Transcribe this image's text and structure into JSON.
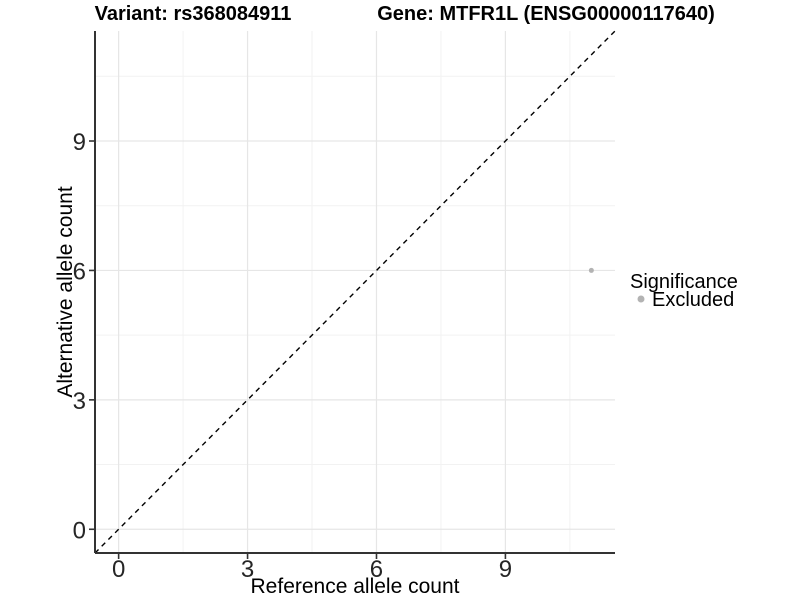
{
  "chart_data": {
    "type": "scatter",
    "titles": [
      "Variant: rs368084911",
      "Gene: MTFR1L (ENSG00000117640)"
    ],
    "xlabel": "Reference allele count",
    "ylabel": "Alternative allele count",
    "xlim": [
      -0.55,
      11.55
    ],
    "ylim": [
      -0.55,
      11.55
    ],
    "x_ticks": [
      0,
      3,
      6,
      9
    ],
    "y_ticks": [
      0,
      3,
      6,
      9
    ],
    "x_minor_ticks": [
      1.5,
      4.5,
      7.5,
      10.5
    ],
    "y_minor_ticks": [
      1.5,
      4.5,
      7.5,
      10.5
    ],
    "series": [
      {
        "name": "Excluded",
        "color": "#b3b3b3",
        "points": [
          {
            "x": 11,
            "y": 6
          }
        ]
      }
    ],
    "reference_line": {
      "kind": "identity y=x",
      "from": [
        -0.55,
        -0.55
      ],
      "to": [
        11.55,
        11.55
      ],
      "dashed": true,
      "color": "#000000"
    },
    "legend": {
      "title": "Significance",
      "position": "right",
      "items": [
        {
          "label": "Excluded",
          "color": "#b3b3b3"
        }
      ]
    },
    "grid": {
      "major": true,
      "minor": true,
      "background": "#ffffff"
    }
  },
  "colors": {
    "grid_major": "#e6e6e6",
    "grid_minor": "#f2f2f2",
    "axis_line": "#333333",
    "tick_text": "#262626",
    "point": "#b3b3b3"
  }
}
